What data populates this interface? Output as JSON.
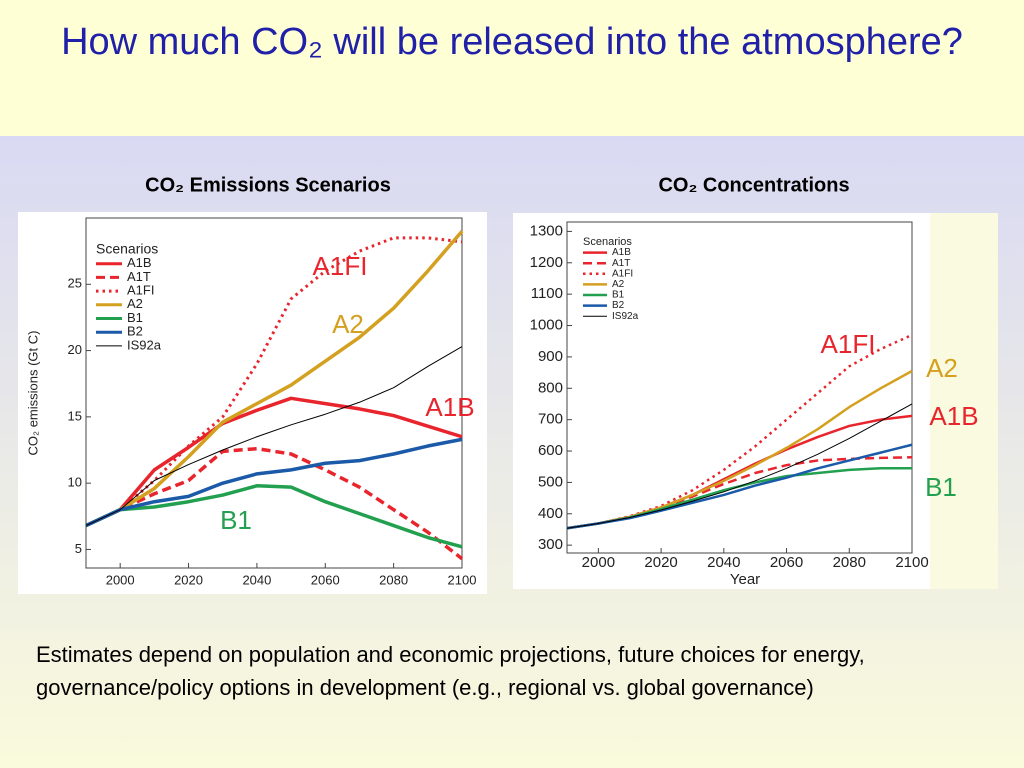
{
  "title": "How much CO₂ will be released into the atmosphere?",
  "caption": "Estimates depend on population and economic projections, future choices for energy, governance/policy options in development (e.g., regional vs. global governance)",
  "chart_data": [
    {
      "type": "line",
      "title": "CO₂ Emissions Scenarios",
      "y_label": "CO₂ emissions (Gt C)",
      "legend_title": "Scenarios",
      "legend": "upper left",
      "x": [
        1990,
        2000,
        2010,
        2020,
        2030,
        2040,
        2050,
        2060,
        2070,
        2080,
        2090,
        2100
      ],
      "xlim": [
        1990,
        2100
      ],
      "xticks": [
        2000,
        2020,
        2040,
        2060,
        2080,
        2100
      ],
      "ylim": [
        3.6,
        30
      ],
      "yticks": [
        5,
        10,
        15,
        20,
        25
      ],
      "series": [
        {
          "name": "A1B",
          "color": "#e8242c",
          "dash": "solid",
          "width": 3.5,
          "values": [
            6.8,
            8.0,
            11.0,
            12.7,
            14.5,
            15.5,
            16.4,
            16.0,
            15.6,
            15.1,
            14.3,
            13.5
          ]
        },
        {
          "name": "A1T",
          "color": "#e8242c",
          "dash": "dashed",
          "width": 3.5,
          "values": [
            6.8,
            8.0,
            9.2,
            10.2,
            12.4,
            12.6,
            12.2,
            11.0,
            9.7,
            8.0,
            6.3,
            4.3
          ]
        },
        {
          "name": "A1FI",
          "color": "#e8242c",
          "dash": "dotted",
          "width": 3,
          "values": [
            6.8,
            8.0,
            10.2,
            12.8,
            15.0,
            19.0,
            23.9,
            26.0,
            27.5,
            28.5,
            28.5,
            28.2
          ]
        },
        {
          "name": "A2",
          "color": "#d4a020",
          "dash": "solid",
          "width": 3.5,
          "values": [
            6.8,
            8.0,
            9.6,
            12.0,
            14.6,
            16.0,
            17.4,
            19.2,
            21.0,
            23.2,
            26.0,
            29.0
          ]
        },
        {
          "name": "B1",
          "color": "#22a050",
          "dash": "solid",
          "width": 3.5,
          "values": [
            6.8,
            8.0,
            8.2,
            8.6,
            9.1,
            9.8,
            9.7,
            8.6,
            7.7,
            6.8,
            5.9,
            5.2
          ]
        },
        {
          "name": "B2",
          "color": "#1a5aa8",
          "dash": "solid",
          "width": 3.5,
          "values": [
            6.8,
            8.0,
            8.6,
            9.0,
            10.0,
            10.7,
            11.0,
            11.5,
            11.7,
            12.2,
            12.8,
            13.3
          ]
        },
        {
          "name": "IS92a",
          "color": "#000000",
          "dash": "solid",
          "width": 1,
          "values": [
            6.8,
            8.0,
            10.2,
            11.4,
            12.5,
            13.5,
            14.4,
            15.2,
            16.1,
            17.2,
            18.8,
            20.3
          ]
        }
      ],
      "annotations": [
        {
          "text": "A1FI",
          "color": "#e8242c"
        },
        {
          "text": "A2",
          "color": "#d4a020"
        },
        {
          "text": "A1B",
          "color": "#e8242c"
        },
        {
          "text": "B1",
          "color": "#22a050"
        }
      ]
    },
    {
      "type": "line",
      "title": "CO₂ Concentrations",
      "x_label": "Year",
      "legend_title": "Scenarios",
      "legend": "upper left",
      "x": [
        1990,
        2000,
        2010,
        2020,
        2030,
        2040,
        2050,
        2060,
        2070,
        2080,
        2090,
        2100
      ],
      "xlim": [
        1990,
        2100
      ],
      "xticks": [
        2000,
        2020,
        2040,
        2060,
        2080,
        2100
      ],
      "ylim": [
        275,
        1330
      ],
      "yticks": [
        300,
        400,
        500,
        600,
        700,
        800,
        900,
        1000,
        1100,
        1200,
        1300
      ],
      "series": [
        {
          "name": "A1B",
          "color": "#e8242c",
          "dash": "solid",
          "width": 2.5,
          "values": [
            354,
            369,
            390,
            420,
            460,
            510,
            560,
            605,
            645,
            680,
            700,
            712
          ]
        },
        {
          "name": "A1T",
          "color": "#e8242c",
          "dash": "dashed",
          "width": 2.5,
          "values": [
            354,
            369,
            390,
            420,
            455,
            495,
            530,
            555,
            570,
            575,
            578,
            580
          ]
        },
        {
          "name": "A1FI",
          "color": "#e8242c",
          "dash": "dotted",
          "width": 2.5,
          "values": [
            354,
            369,
            392,
            425,
            475,
            540,
            615,
            700,
            785,
            870,
            925,
            970
          ]
        },
        {
          "name": "A2",
          "color": "#d4a020",
          "dash": "solid",
          "width": 2.5,
          "values": [
            354,
            369,
            390,
            420,
            460,
            505,
            555,
            610,
            670,
            740,
            800,
            855
          ]
        },
        {
          "name": "B1",
          "color": "#22a050",
          "dash": "solid",
          "width": 2.5,
          "values": [
            354,
            369,
            388,
            415,
            445,
            475,
            500,
            520,
            530,
            540,
            545,
            545
          ]
        },
        {
          "name": "B2",
          "color": "#1a5aa8",
          "dash": "solid",
          "width": 2.5,
          "values": [
            354,
            369,
            386,
            410,
            435,
            460,
            490,
            515,
            545,
            570,
            595,
            620
          ]
        },
        {
          "name": "IS92a",
          "color": "#000000",
          "dash": "solid",
          "width": 1,
          "values": [
            354,
            369,
            388,
            412,
            440,
            470,
            505,
            545,
            590,
            640,
            695,
            750
          ]
        }
      ],
      "annotations": [
        {
          "text": "A1FI",
          "color": "#e8242c"
        },
        {
          "text": "A2",
          "color": "#d4a020"
        },
        {
          "text": "A1B",
          "color": "#e8242c"
        },
        {
          "text": "B1",
          "color": "#22a050"
        }
      ]
    }
  ]
}
